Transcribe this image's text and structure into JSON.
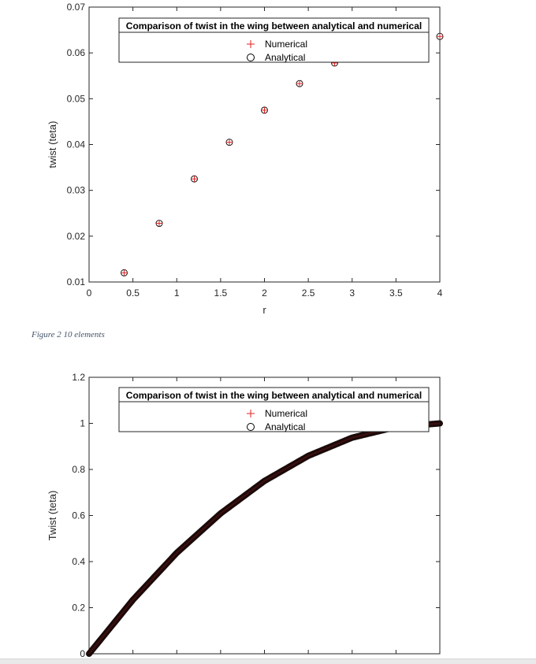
{
  "figure_caption": "Figure 2 10 elements",
  "chart_data": [
    {
      "type": "scatter",
      "title": "Comparison of twist in the wing between analytical and numerical",
      "xlabel": "r",
      "ylabel": "twist (teta)",
      "xlim": [
        0,
        4
      ],
      "ylim": [
        0.01,
        0.07
      ],
      "xticks": [
        "0",
        "0.5",
        "1",
        "1.5",
        "2",
        "2.5",
        "3",
        "3.5",
        "4"
      ],
      "yticks": [
        "0.01",
        "0.02",
        "0.03",
        "0.04",
        "0.05",
        "0.06",
        "0.07"
      ],
      "legend_position": "top-center",
      "series": [
        {
          "name": "Numerical",
          "marker": "plus",
          "color": "#e02020",
          "x": [
            0.4,
            0.8,
            1.2,
            1.6,
            2.0,
            2.4,
            2.8,
            3.2,
            3.6,
            4.0
          ],
          "y": [
            0.012,
            0.0228,
            0.0325,
            0.0405,
            0.0475,
            0.0533,
            0.0578,
            0.061,
            0.063,
            0.0636
          ]
        },
        {
          "name": "Analytical",
          "marker": "circle",
          "color": "#000000",
          "x": [
            0.4,
            0.8,
            1.2,
            1.6,
            2.0,
            2.4,
            2.8,
            3.2,
            3.6,
            4.0
          ],
          "y": [
            0.012,
            0.0228,
            0.0325,
            0.0405,
            0.0475,
            0.0533,
            0.0578,
            0.061,
            0.063,
            0.0636
          ]
        }
      ]
    },
    {
      "type": "scatter",
      "title": "Comparison of twist in the wing between analytical and numerical",
      "xlabel": "",
      "ylabel": "Twist (teta)",
      "xlim": [
        0,
        4
      ],
      "ylim": [
        0,
        1.2
      ],
      "yticks": [
        "0",
        "0.2",
        "0.4",
        "0.6",
        "0.8",
        "1",
        "1.2"
      ],
      "legend_position": "top-center",
      "series": [
        {
          "name": "Numerical",
          "marker": "plus",
          "color": "#e02020"
        },
        {
          "name": "Analytical",
          "marker": "circle",
          "color": "#000000"
        }
      ],
      "curve": {
        "formula_points_x": [
          0,
          0.5,
          1,
          1.5,
          2,
          2.5,
          3,
          3.5,
          4
        ],
        "formula_points_y": [
          0,
          0.234,
          0.438,
          0.609,
          0.75,
          0.859,
          0.938,
          0.984,
          1.0
        ]
      }
    }
  ]
}
